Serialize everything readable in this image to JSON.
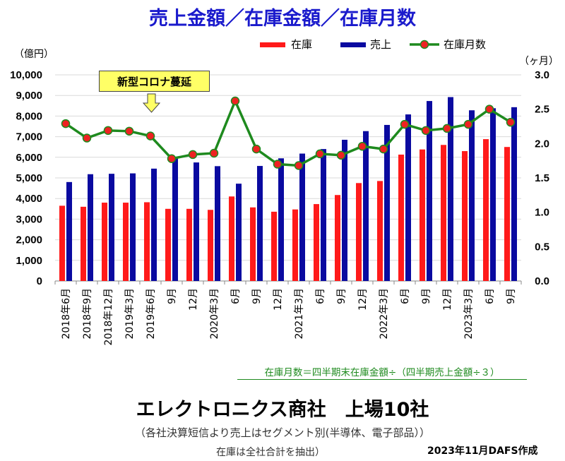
{
  "title": "売上金額／在庫金額／在庫月数",
  "unit_left": "（億円）",
  "unit_right": "（ヶ月）",
  "annotation": "新型コロナ蔓延",
  "formula": "在庫月数＝四半期末在庫金額÷（四半期売上金額÷３）",
  "subtitle": "エレクトロニクス商社　上場10社",
  "note1": "（各社決算短信より売上はセグメント別(半導体、電子部品））",
  "note2": "在庫は全社合計を抽出）",
  "credit": "2023年11月DAFS作成",
  "colors": {
    "inventory": "#ff1a1a",
    "sales": "#0a0aa0",
    "months_line": "#1e8a1e",
    "months_marker": "#ee2222",
    "title": "#1a1acc"
  },
  "chart_data": {
    "type": "bar+line",
    "categories": [
      "2018年6月",
      "2018年9月",
      "2018年12月",
      "2019年3月",
      "2019年6月",
      "9月",
      "12月",
      "2020年3月",
      "6月",
      "9月",
      "12月",
      "2021年3月",
      "6月",
      "9月",
      "12月",
      "2022年3月",
      "6月",
      "9月",
      "12月",
      "2023年3月",
      "6月",
      "9月"
    ],
    "series": [
      {
        "name": "在庫",
        "type": "bar",
        "axis": "left",
        "values": [
          3650,
          3600,
          3800,
          3800,
          3820,
          3500,
          3500,
          3450,
          4100,
          3570,
          3360,
          3470,
          3730,
          4170,
          4750,
          4850,
          6130,
          6380,
          6600,
          6300,
          6880,
          6500
        ]
      },
      {
        "name": "売上",
        "type": "bar",
        "axis": "left",
        "values": [
          4800,
          5180,
          5200,
          5220,
          5450,
          6000,
          5750,
          5570,
          4720,
          5580,
          5950,
          6180,
          6400,
          6850,
          7270,
          7570,
          8080,
          8730,
          8920,
          8280,
          8380,
          8430
        ]
      },
      {
        "name": "在庫月数",
        "type": "line",
        "axis": "right",
        "values": [
          2.29,
          2.08,
          2.19,
          2.18,
          2.11,
          1.78,
          1.84,
          1.86,
          2.62,
          1.92,
          1.7,
          1.68,
          1.85,
          1.83,
          1.96,
          1.92,
          2.28,
          2.19,
          2.22,
          2.28,
          2.5,
          2.31
        ]
      }
    ],
    "ylim_left": [
      0,
      10000
    ],
    "yticks_left": [
      "0",
      "1,000",
      "2,000",
      "3,000",
      "4,000",
      "5,000",
      "6,000",
      "7,000",
      "8,000",
      "9,000",
      "10,000"
    ],
    "ylim_right": [
      0,
      3.0
    ],
    "yticks_right": [
      "0.0",
      "0.5",
      "1.0",
      "1.5",
      "2.0",
      "2.5",
      "3.0"
    ],
    "grid": true,
    "legend_position": "top-right"
  }
}
